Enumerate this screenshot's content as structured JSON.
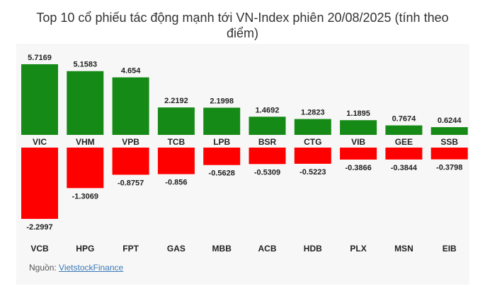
{
  "chart_data": {
    "type": "bar",
    "title": "Top 10 cổ phiếu tác động mạnh tới VN-Index phiên 20/08/2025 (tính theo điểm)",
    "series": [
      {
        "categories": [
          "VIC",
          "VHM",
          "VPB",
          "TCB",
          "LPB",
          "BSR",
          "CTG",
          "VIB",
          "GEE",
          "SSB"
        ],
        "values": [
          5.7169,
          5.1583,
          4.654,
          2.2192,
          2.1998,
          1.4692,
          1.2823,
          1.1895,
          0.7674,
          0.6244
        ],
        "color": "#168a16"
      },
      {
        "categories": [
          "VCB",
          "HPG",
          "FPT",
          "GAS",
          "MBB",
          "ACB",
          "HDB",
          "PLX",
          "MSN",
          "EIB"
        ],
        "values": [
          -2.2997,
          -1.3069,
          -0.8757,
          -0.856,
          -0.5628,
          -0.5309,
          -0.5223,
          -0.3866,
          -0.3844,
          -0.3798
        ],
        "color": "#ff0000"
      }
    ],
    "grid": false,
    "legend": "none"
  },
  "source": {
    "label": "Nguồn:",
    "link": "VietstockFinance"
  }
}
